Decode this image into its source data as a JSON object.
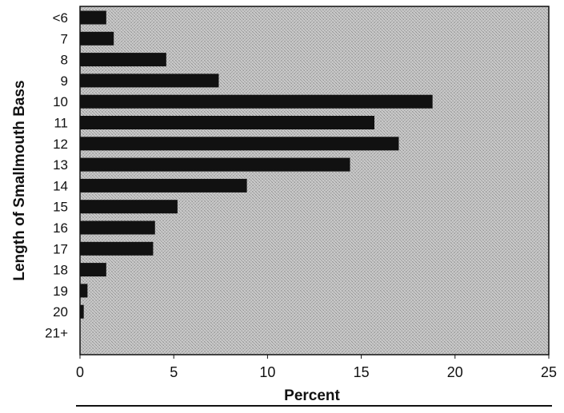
{
  "chart_data": {
    "type": "bar",
    "orientation": "horizontal",
    "categories": [
      "<6",
      "7",
      "8",
      "9",
      "10",
      "11",
      "12",
      "13",
      "14",
      "15",
      "16",
      "17",
      "18",
      "19",
      "20",
      "21+"
    ],
    "values": [
      1.4,
      1.8,
      4.6,
      7.4,
      18.8,
      15.7,
      17.0,
      14.4,
      8.9,
      5.2,
      4.0,
      3.9,
      1.4,
      0.4,
      0.2,
      0.0
    ],
    "title": "",
    "xlabel": "Percent",
    "ylabel": "Length of Smallmouth Bass",
    "xlim": [
      0,
      25
    ],
    "x_ticks": [
      0,
      5,
      10,
      15,
      20,
      25
    ],
    "grid": false,
    "legend": "none",
    "colors": {
      "bar": "#111111",
      "plot_background": "#c8c8c8",
      "axis": "#111111",
      "text": "#111111"
    }
  }
}
